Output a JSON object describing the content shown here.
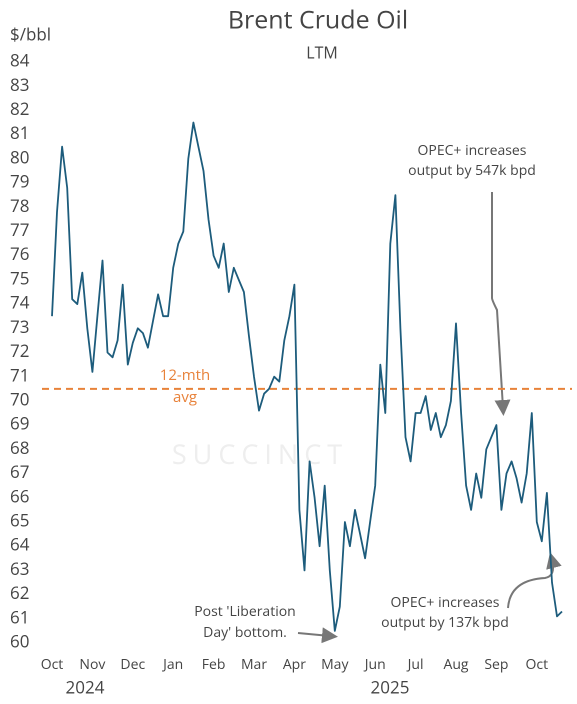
{
  "chart_data": {
    "type": "line",
    "title": "Brent Crude Oil",
    "subtitle": "LTM",
    "y_label": "$/bbl",
    "watermark": "SUCCINCT",
    "year_labels": [
      "2024",
      "2025"
    ],
    "categories": [
      "Oct",
      null,
      null,
      null,
      null,
      null,
      null,
      null,
      "Nov",
      null,
      null,
      null,
      null,
      null,
      null,
      null,
      "Dec",
      null,
      null,
      null,
      null,
      null,
      null,
      null,
      "Jan",
      null,
      null,
      null,
      null,
      null,
      null,
      null,
      "Feb",
      null,
      null,
      null,
      null,
      null,
      null,
      null,
      "Mar",
      null,
      null,
      null,
      null,
      null,
      null,
      null,
      "Apr",
      null,
      null,
      null,
      null,
      null,
      null,
      null,
      "May",
      null,
      null,
      null,
      null,
      null,
      null,
      null,
      "Jun",
      null,
      null,
      null,
      null,
      null,
      null,
      null,
      "Jul",
      null,
      null,
      null,
      null,
      null,
      null,
      null,
      "Aug",
      null,
      null,
      null,
      null,
      null,
      null,
      null,
      "Sep",
      null,
      null,
      null,
      null,
      null,
      null,
      null,
      "Oct",
      null,
      null,
      null,
      null,
      null
    ],
    "series": [
      {
        "name": "Brent",
        "color": "#1d5c7c",
        "values": [
          73.5,
          77.8,
          80.5,
          78.8,
          74.2,
          74.0,
          75.3,
          73.0,
          71.2,
          73.5,
          75.8,
          72.0,
          71.8,
          72.5,
          74.8,
          71.5,
          72.4,
          73.0,
          72.8,
          72.2,
          73.3,
          74.4,
          73.5,
          73.5,
          75.5,
          76.5,
          77.0,
          80.0,
          81.5,
          80.5,
          79.5,
          77.5,
          76.0,
          75.5,
          76.5,
          74.5,
          75.5,
          75.0,
          74.5,
          72.7,
          71.0,
          69.6,
          70.3,
          70.5,
          71.0,
          70.8,
          72.5,
          73.5,
          74.8,
          65.5,
          63.0,
          67.5,
          66.0,
          64.0,
          66.5,
          63.0,
          60.5,
          61.5,
          65.0,
          64.0,
          65.5,
          64.5,
          63.5,
          65.0,
          66.5,
          71.5,
          69.5,
          76.5,
          78.5,
          73.0,
          68.5,
          67.5,
          69.5,
          69.5,
          70.2,
          68.8,
          69.5,
          68.5,
          69.0,
          70.0,
          73.2,
          69.5,
          66.5,
          65.5,
          67.0,
          66.0,
          68.0,
          68.5,
          69.0,
          65.5,
          67.0,
          67.5,
          66.8,
          65.8,
          67.0,
          69.5,
          65.0,
          64.2,
          66.2,
          62.5,
          61.1,
          61.3
        ]
      }
    ],
    "average": {
      "value": 70.5,
      "label": [
        "12-mth",
        "avg"
      ],
      "color": "#e8823a"
    },
    "annotations": [
      {
        "text": [
          "OPEC+ increases",
          "output by 547k bpd"
        ]
      },
      {
        "text": [
          "OPEC+ increases",
          "output by 137k bpd"
        ]
      },
      {
        "text": [
          "Post 'Liberation",
          "Day' bottom."
        ]
      }
    ],
    "ylim": [
      60,
      84
    ],
    "yticks": [
      60,
      61,
      62,
      63,
      64,
      65,
      66,
      67,
      68,
      69,
      70,
      71,
      72,
      73,
      74,
      75,
      76,
      77,
      78,
      79,
      80,
      81,
      82,
      83,
      84
    ],
    "grid": false
  }
}
